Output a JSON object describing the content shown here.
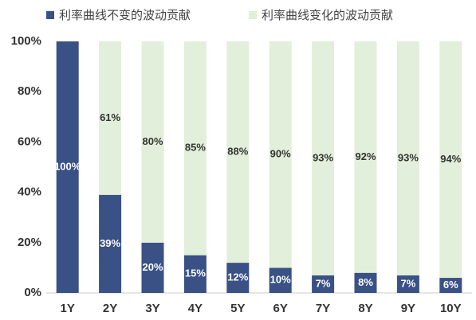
{
  "chart_data": {
    "type": "stacked_bar",
    "categories": [
      "1Y",
      "2Y",
      "3Y",
      "4Y",
      "5Y",
      "6Y",
      "7Y",
      "8Y",
      "9Y",
      "10Y"
    ],
    "series": [
      {
        "name": "利率曲线不变的波动贡献",
        "color": "#3a5186",
        "values": [
          100,
          39,
          20,
          15,
          12,
          10,
          7,
          8,
          7,
          6
        ],
        "value_labels": [
          "100%",
          "39%",
          "20%",
          "15%",
          "12%",
          "10%",
          "7%",
          "8%",
          "7%",
          "6%"
        ]
      },
      {
        "name": "利率曲线变化的波动贡献",
        "color": "#e2efda",
        "values": [
          0,
          61,
          80,
          85,
          88,
          90,
          93,
          92,
          93,
          94
        ],
        "value_labels": [
          null,
          "61%",
          "80%",
          "85%",
          "88%",
          "90%",
          "93%",
          "92%",
          "93%",
          "94%"
        ]
      }
    ],
    "ylim": [
      0,
      100
    ],
    "yticks": [
      {
        "value": 0,
        "label": "0%"
      },
      {
        "value": 20,
        "label": "20%"
      },
      {
        "value": 40,
        "label": "40%"
      },
      {
        "value": 60,
        "label": "60%"
      },
      {
        "value": 80,
        "label": "80%"
      },
      {
        "value": 100,
        "label": "100%"
      }
    ],
    "legend": "top"
  }
}
